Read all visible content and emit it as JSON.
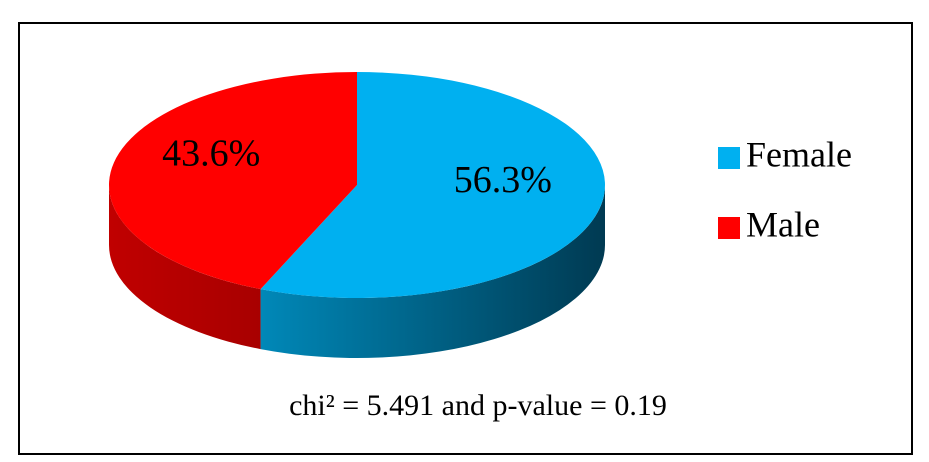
{
  "chart_data": {
    "type": "pie",
    "categories": [
      "Female",
      "Male"
    ],
    "values": [
      56.3,
      43.6
    ],
    "value_labels": [
      "56.3%",
      "43.6%"
    ],
    "colors": [
      "#00b0f0",
      "#ff0000"
    ],
    "annotation": "chi² = 5.491 and p-value = 0.19",
    "legend": "right"
  }
}
